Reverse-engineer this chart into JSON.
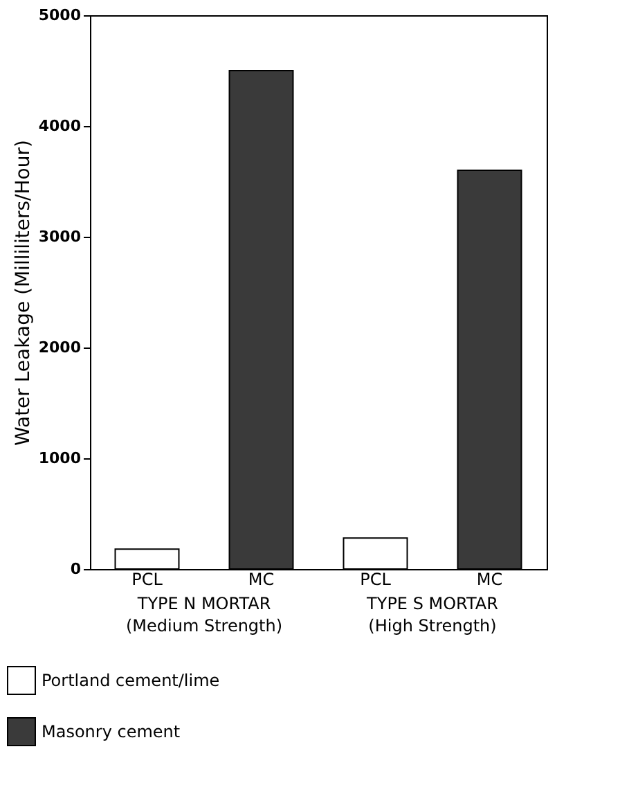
{
  "chart_data": {
    "type": "bar",
    "ylabel": "Water Leakage (Milliliters/Hour)",
    "categories": [
      "PCL",
      "MC",
      "PCL",
      "MC"
    ],
    "series": [
      {
        "name": "Portland cement/lime",
        "color": "#ffffff",
        "values": [
          180,
          null,
          280,
          null
        ]
      },
      {
        "name": "Masonry cement",
        "color": "#3a3a3a",
        "values": [
          null,
          4500,
          null,
          3600
        ]
      }
    ],
    "ylim": [
      0,
      5000
    ],
    "yticks": [
      0,
      1000,
      2000,
      3000,
      4000,
      5000
    ],
    "grid": false,
    "legend": "bottom left",
    "annotations": [
      "TYPE N MORTAR",
      "(Medium Strength)",
      "TYPE S MORTAR",
      "(High Strength)"
    ]
  }
}
